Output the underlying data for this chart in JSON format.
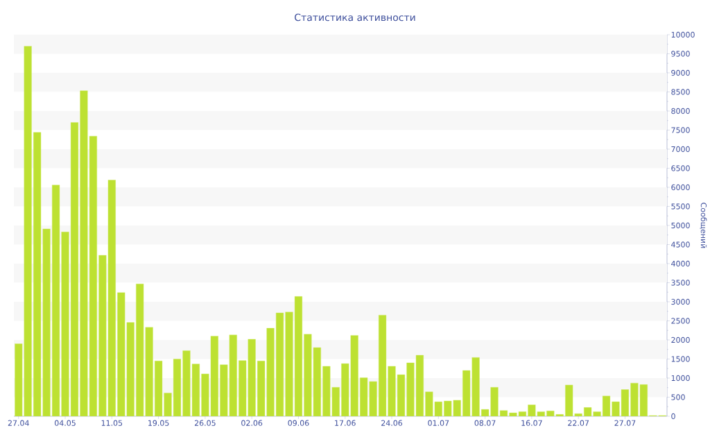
{
  "chart_data": {
    "type": "bar",
    "title": "Статистика активности",
    "ylabel": "Сообщений",
    "color": "#bde132",
    "categories": [
      "27.04",
      null,
      null,
      null,
      null,
      "04.05",
      null,
      null,
      null,
      null,
      "11.05",
      null,
      null,
      null,
      null,
      "19.05",
      null,
      null,
      null,
      null,
      "26.05",
      null,
      null,
      null,
      null,
      "02.06",
      null,
      null,
      null,
      null,
      "09.06",
      null,
      null,
      null,
      null,
      "17.06",
      null,
      null,
      null,
      null,
      "24.06",
      null,
      null,
      null,
      null,
      "01.07",
      null,
      null,
      null,
      null,
      "08.07",
      null,
      null,
      null,
      null,
      "16.07",
      null,
      null,
      null,
      null,
      "22.07",
      null,
      null,
      null,
      null,
      "27.07",
      null,
      null,
      null,
      null
    ],
    "values": [
      1900,
      9700,
      7440,
      4910,
      6060,
      4830,
      7700,
      8530,
      7340,
      4220,
      6190,
      3240,
      2460,
      3470,
      2330,
      1450,
      610,
      1500,
      1720,
      1370,
      1110,
      2100,
      1350,
      2130,
      1460,
      2020,
      1450,
      2310,
      2710,
      2730,
      3140,
      2150,
      1800,
      1310,
      760,
      1380,
      2120,
      1010,
      910,
      2650,
      1310,
      1090,
      1400,
      1600,
      640,
      380,
      400,
      420,
      1200,
      1540,
      180,
      760,
      150,
      90,
      120,
      300,
      120,
      140,
      50,
      820,
      70,
      230,
      120,
      530,
      380,
      700,
      870,
      830,
      20,
      20
    ],
    "ylim": [
      0,
      10000
    ],
    "yticks": [
      0,
      500,
      1000,
      1500,
      2000,
      2500,
      3000,
      3500,
      4000,
      4500,
      5000,
      5500,
      6000,
      6500,
      7000,
      7500,
      8000,
      8500,
      9000,
      9500,
      10000
    ]
  }
}
